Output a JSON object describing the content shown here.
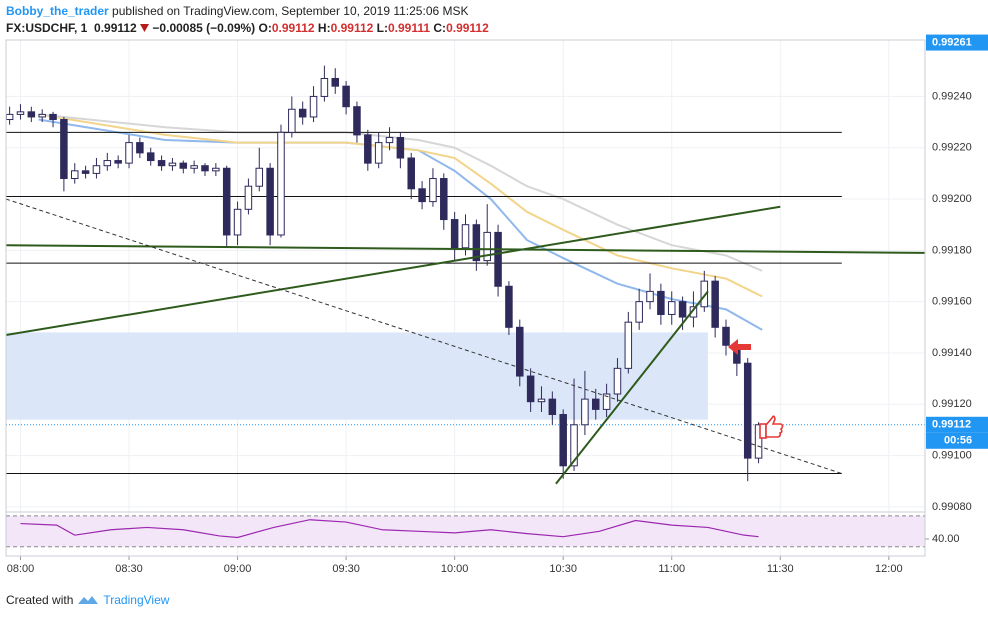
{
  "header": {
    "author": "Bobby_the_trader",
    "published": "published on TradingView.com, September 10, 2019 11:25:06 MSK",
    "symbol": "FX:USDCHF, 1",
    "price": "0.99112",
    "change": "−0.00085 (−0.09%)",
    "ohlc_labels": [
      "O:",
      "H:",
      "L:",
      "C:"
    ],
    "ohlc_values": [
      "0.99112",
      "0.99112",
      "0.99111",
      "0.99112"
    ]
  },
  "footer": {
    "prefix": "Created with",
    "brand": "TradingView"
  },
  "chart_data": {
    "type": "candlestick",
    "x": [
      "07:57",
      "08:00",
      "08:03",
      "08:06",
      "08:09",
      "08:12",
      "08:15",
      "08:18",
      "08:21",
      "08:24",
      "08:27",
      "08:30",
      "08:33",
      "08:36",
      "08:39",
      "08:42",
      "08:45",
      "08:48",
      "08:51",
      "08:54",
      "08:57",
      "09:00",
      "09:03",
      "09:06",
      "09:09",
      "09:12",
      "09:15",
      "09:18",
      "09:21",
      "09:24",
      "09:27",
      "09:30",
      "09:33",
      "09:36",
      "09:39",
      "09:42",
      "09:45",
      "09:48",
      "09:51",
      "09:54",
      "09:57",
      "10:00",
      "10:03",
      "10:06",
      "10:09",
      "10:12",
      "10:15",
      "10:18",
      "10:21",
      "10:24",
      "10:27",
      "10:30",
      "10:33",
      "10:36",
      "10:39",
      "10:42",
      "10:45",
      "10:48",
      "10:51",
      "10:54",
      "10:57",
      "11:00",
      "11:03",
      "11:06",
      "11:09",
      "11:12",
      "11:15",
      "11:18",
      "11:21",
      "11:24"
    ],
    "open": [
      0.99231,
      0.99233,
      0.99234,
      0.99232,
      0.99233,
      0.99231,
      0.99208,
      0.99211,
      0.9921,
      0.99213,
      0.99215,
      0.99214,
      0.99222,
      0.99218,
      0.99215,
      0.99213,
      0.99214,
      0.99212,
      0.99213,
      0.99211,
      0.99212,
      0.99186,
      0.99196,
      0.99205,
      0.99212,
      0.99186,
      0.99226,
      0.99235,
      0.99232,
      0.9924,
      0.99247,
      0.99244,
      0.99236,
      0.99225,
      0.99214,
      0.99222,
      0.99224,
      0.99216,
      0.99204,
      0.99199,
      0.99208,
      0.99192,
      0.99181,
      0.9919,
      0.99176,
      0.99187,
      0.99166,
      0.9915,
      0.99131,
      0.99121,
      0.99122,
      0.99116,
      0.99096,
      0.99112,
      0.99122,
      0.99118,
      0.99124,
      0.99134,
      0.99152,
      0.9916,
      0.99164,
      0.99155,
      0.9916,
      0.99154,
      0.99158,
      0.99168,
      0.9915,
      0.99143,
      0.99136,
      0.99099
    ],
    "high": [
      0.99236,
      0.99237,
      0.99236,
      0.99235,
      0.99234,
      0.99232,
      0.99214,
      0.99213,
      0.99216,
      0.99218,
      0.99217,
      0.99225,
      0.99224,
      0.9922,
      0.99217,
      0.99216,
      0.99215,
      0.99215,
      0.99214,
      0.99214,
      0.99213,
      0.99199,
      0.99208,
      0.9922,
      0.99214,
      0.99229,
      0.9924,
      0.99238,
      0.99244,
      0.99252,
      0.99251,
      0.99246,
      0.99238,
      0.99227,
      0.99226,
      0.99228,
      0.99226,
      0.99218,
      0.99207,
      0.99212,
      0.9921,
      0.99195,
      0.99194,
      0.99192,
      0.99198,
      0.9919,
      0.99168,
      0.99153,
      0.99134,
      0.99127,
      0.99125,
      0.99118,
      0.9913,
      0.99133,
      0.99126,
      0.99128,
      0.99138,
      0.99156,
      0.99165,
      0.99171,
      0.99167,
      0.99164,
      0.99162,
      0.99164,
      0.99172,
      0.9917,
      0.99153,
      0.99145,
      0.99138,
      0.99113
    ],
    "low": [
      0.99229,
      0.99231,
      0.9923,
      0.9923,
      0.99228,
      0.99203,
      0.99206,
      0.99208,
      0.99208,
      0.99211,
      0.99212,
      0.99212,
      0.99216,
      0.99213,
      0.99211,
      0.99211,
      0.9921,
      0.9921,
      0.99209,
      0.99209,
      0.99181,
      0.99182,
      0.99194,
      0.99203,
      0.99182,
      0.99185,
      0.99224,
      0.99229,
      0.9923,
      0.99238,
      0.99241,
      0.99233,
      0.99222,
      0.99211,
      0.99212,
      0.99219,
      0.99212,
      0.992,
      0.99196,
      0.99197,
      0.99188,
      0.99176,
      0.99178,
      0.99172,
      0.99174,
      0.99162,
      0.99147,
      0.99127,
      0.99117,
      0.99117,
      0.99112,
      0.99091,
      0.99094,
      0.99108,
      0.99114,
      0.99115,
      0.99121,
      0.99132,
      0.99149,
      0.99157,
      0.99151,
      0.99151,
      0.99149,
      0.9915,
      0.99156,
      0.99146,
      0.99139,
      0.99131,
      0.9909,
      0.99097
    ],
    "close": [
      0.99233,
      0.99234,
      0.99232,
      0.99233,
      0.99231,
      0.99208,
      0.99211,
      0.9921,
      0.99213,
      0.99215,
      0.99214,
      0.99222,
      0.99218,
      0.99215,
      0.99213,
      0.99214,
      0.99212,
      0.99213,
      0.99211,
      0.99212,
      0.99186,
      0.99196,
      0.99205,
      0.99212,
      0.99186,
      0.99226,
      0.99235,
      0.99232,
      0.9924,
      0.99247,
      0.99244,
      0.99236,
      0.99225,
      0.99214,
      0.99222,
      0.99224,
      0.99216,
      0.99204,
      0.99199,
      0.99208,
      0.99192,
      0.99181,
      0.9919,
      0.99176,
      0.99187,
      0.99166,
      0.9915,
      0.99131,
      0.99121,
      0.99122,
      0.99116,
      0.99096,
      0.99112,
      0.99122,
      0.99118,
      0.99124,
      0.99134,
      0.99152,
      0.9916,
      0.99164,
      0.99155,
      0.9916,
      0.99154,
      0.99158,
      0.99168,
      0.9915,
      0.99143,
      0.99136,
      0.99099,
      0.99112
    ],
    "up_color": "#ffffff",
    "down_color": "#2e2a5c",
    "outline_color": "#2e2a5c",
    "xlim": [
      "07:56",
      "12:10"
    ],
    "xticks": [
      "08:00",
      "08:30",
      "09:00",
      "09:30",
      "10:00",
      "10:30",
      "11:00",
      "11:30",
      "12:00"
    ],
    "ylim": [
      0.99078,
      0.99262
    ],
    "yticks": [
      {
        "value": 0.9908,
        "label": "0.99080"
      },
      {
        "value": 0.991,
        "label": "0.99100"
      },
      {
        "value": 0.9912,
        "label": "0.99120"
      },
      {
        "value": 0.9914,
        "label": "0.99140"
      },
      {
        "value": 0.9916,
        "label": "0.99160"
      },
      {
        "value": 0.9918,
        "label": "0.99180"
      },
      {
        "value": 0.992,
        "label": "0.99200"
      },
      {
        "value": 0.9922,
        "label": "0.99220"
      },
      {
        "value": 0.9924,
        "label": "0.99240"
      }
    ],
    "grid": true,
    "scale_top_label": 0.99261,
    "last_price": 0.99112,
    "countdown": "00:56",
    "label_color": "#2196f3",
    "moving_averages_x": [
      "08:05",
      "08:40",
      "09:00",
      "09:30",
      "09:50",
      "10:00",
      "10:10",
      "10:20",
      "10:30",
      "10:45",
      "11:00",
      "11:15",
      "11:25"
    ],
    "moving_averages": [
      {
        "color": "#90b8ec",
        "values": [
          0.99231,
          0.99223,
          0.99222,
          0.99222,
          0.99219,
          0.99211,
          0.992,
          0.99184,
          0.99177,
          0.99167,
          0.99161,
          0.99157,
          0.99149
        ]
      },
      {
        "color": "#f2d48a",
        "values": [
          0.99233,
          0.99225,
          0.99222,
          0.99222,
          0.99219,
          0.99216,
          0.99206,
          0.99195,
          0.99188,
          0.99178,
          0.99173,
          0.99169,
          0.99162
        ]
      },
      {
        "color": "#d6d6d6",
        "values": [
          0.99233,
          0.99228,
          0.99226,
          0.99226,
          0.99223,
          0.9922,
          0.99213,
          0.99205,
          0.992,
          0.9919,
          0.99182,
          0.99178,
          0.99172
        ]
      }
    ],
    "levels": [
      0.99226,
      0.99201,
      0.99175,
      0.99093
    ],
    "levels_from": "07:56",
    "levels_to": "11:47",
    "trend_lines": [
      {
        "from": [
          "07:56",
          0.99182
        ],
        "to": [
          "12:10",
          0.99179
        ],
        "color": "#2e5a1c",
        "dash": false
      },
      {
        "from": [
          "07:56",
          0.99147
        ],
        "to": [
          "11:30",
          0.99197
        ],
        "color": "#2e5a1c",
        "dash": false
      },
      {
        "from": [
          "10:28",
          0.99089
        ],
        "to": [
          "11:10",
          0.99164
        ],
        "color": "#2e5a1c",
        "dash": false
      },
      {
        "from": [
          "07:56",
          0.992
        ],
        "to": [
          "11:47",
          0.99093
        ],
        "color": "#333333",
        "dash": true
      }
    ],
    "zone": {
      "from": "07:56",
      "to": "11:10",
      "top": 0.99148,
      "bottom": 0.99114,
      "color": "#dbe7f8"
    },
    "rsi": {
      "x": [
        "08:00",
        "08:10",
        "08:15",
        "08:25",
        "08:35",
        "08:45",
        "08:55",
        "09:00",
        "09:10",
        "09:20",
        "09:30",
        "09:40",
        "09:50",
        "10:00",
        "10:10",
        "10:20",
        "10:30",
        "10:40",
        "10:50",
        "11:00",
        "11:10",
        "11:20",
        "11:24"
      ],
      "values": [
        60,
        58,
        45,
        52,
        55,
        52,
        44,
        42,
        55,
        65,
        62,
        52,
        50,
        48,
        52,
        47,
        43,
        50,
        64,
        58,
        55,
        45,
        43
      ],
      "color": "#9c27b0",
      "band_color": "#f3e6f8",
      "ylim": [
        18,
        75
      ],
      "yticks": [
        {
          "value": 40,
          "label": "40.00"
        }
      ],
      "levels": [
        70,
        30
      ]
    }
  }
}
